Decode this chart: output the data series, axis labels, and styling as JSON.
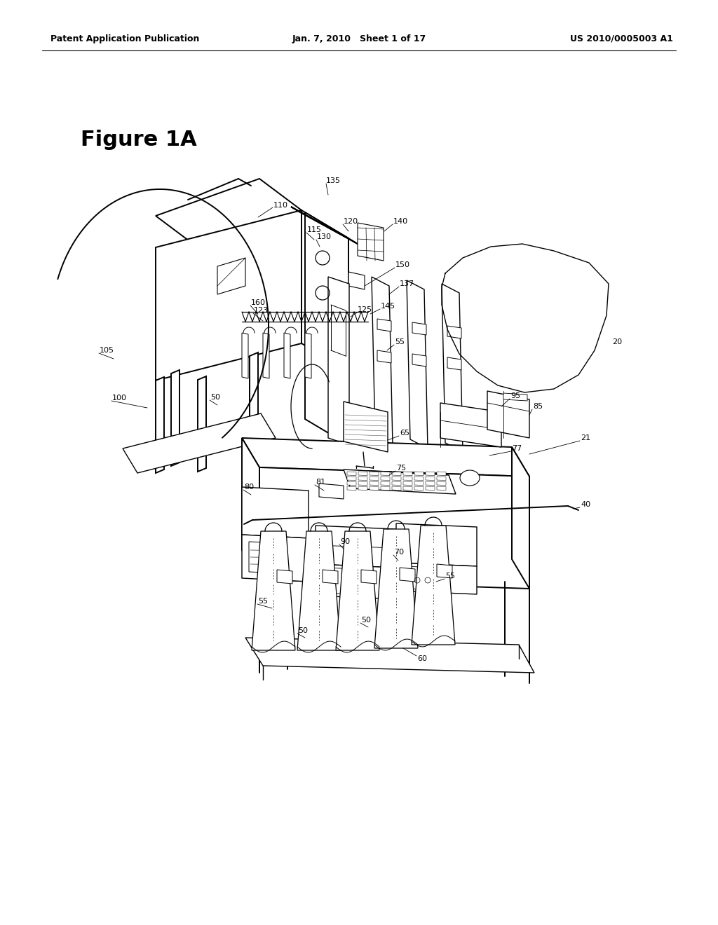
{
  "bg_color": "#ffffff",
  "header_left": "Patent Application Publication",
  "header_center": "Jan. 7, 2010   Sheet 1 of 17",
  "header_right": "US 2010/0005003 A1",
  "figure_label": "Figure 1A",
  "fig_w": 10.24,
  "fig_h": 13.2,
  "dpi": 100
}
